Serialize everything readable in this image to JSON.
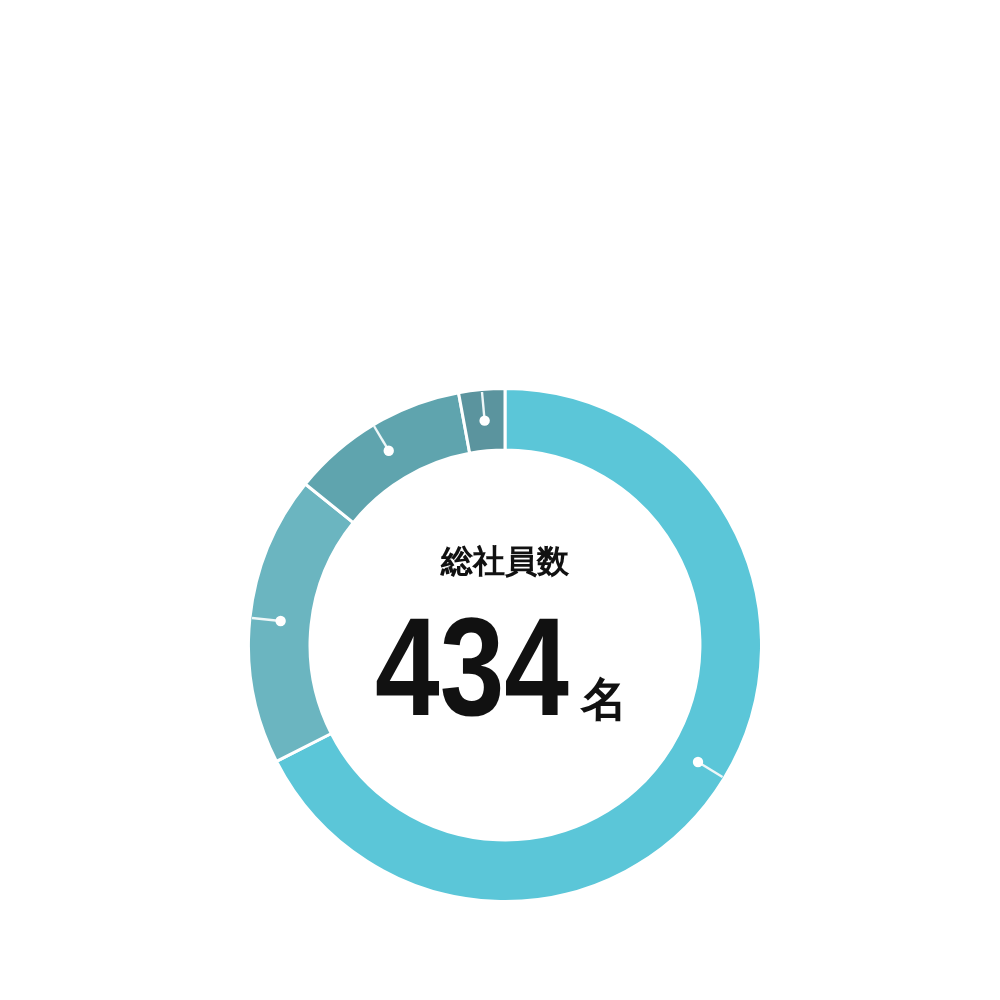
{
  "chart_data": {
    "type": "donut",
    "categories": [
      null,
      null,
      null,
      null
    ],
    "values": [
      67.5,
      18.3,
      11.3,
      2.9
    ],
    "colors": [
      "#5bc6d8",
      "#6bb5c0",
      "#5fa4ae",
      "#5b949e"
    ],
    "legend": false,
    "annotations": [
      "総社員数",
      "434名"
    ]
  }
}
